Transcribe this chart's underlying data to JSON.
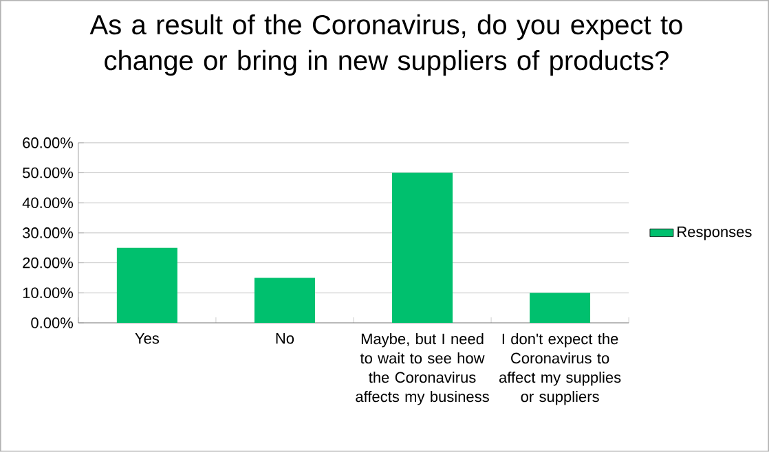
{
  "chart_data": {
    "type": "bar",
    "title": "As a result of the Coronavirus, do you expect to change or bring in new suppliers of products?",
    "categories": [
      "Yes",
      "No",
      "Maybe, but I need to wait to see how the Coronavirus affects my business",
      "I don't expect the Coronavirus to affect my supplies or suppliers"
    ],
    "series": [
      {
        "name": "Responses",
        "color": "#00c06e",
        "values": [
          25,
          15,
          50,
          10
        ]
      }
    ],
    "ylim": [
      0,
      60
    ],
    "yticks": [
      {
        "value": 0,
        "label": "0.00%"
      },
      {
        "value": 10,
        "label": "10.00%"
      },
      {
        "value": 20,
        "label": "20.00%"
      },
      {
        "value": 30,
        "label": "30.00%"
      },
      {
        "value": 40,
        "label": "40.00%"
      },
      {
        "value": 50,
        "label": "50.00%"
      },
      {
        "value": 60,
        "label": "60.00%"
      }
    ],
    "grid": "y",
    "legend": "right"
  }
}
